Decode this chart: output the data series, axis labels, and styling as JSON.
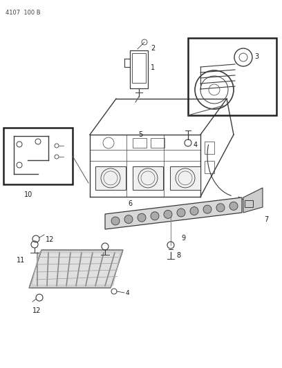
{
  "header": "4107  100 B",
  "bg": "#ffffff",
  "lc": "#3a3a3a",
  "tc": "#1a1a1a",
  "fig_w": 4.08,
  "fig_h": 5.33,
  "dpi": 100,
  "xlim": [
    0,
    408
  ],
  "ylim": [
    0,
    533
  ]
}
